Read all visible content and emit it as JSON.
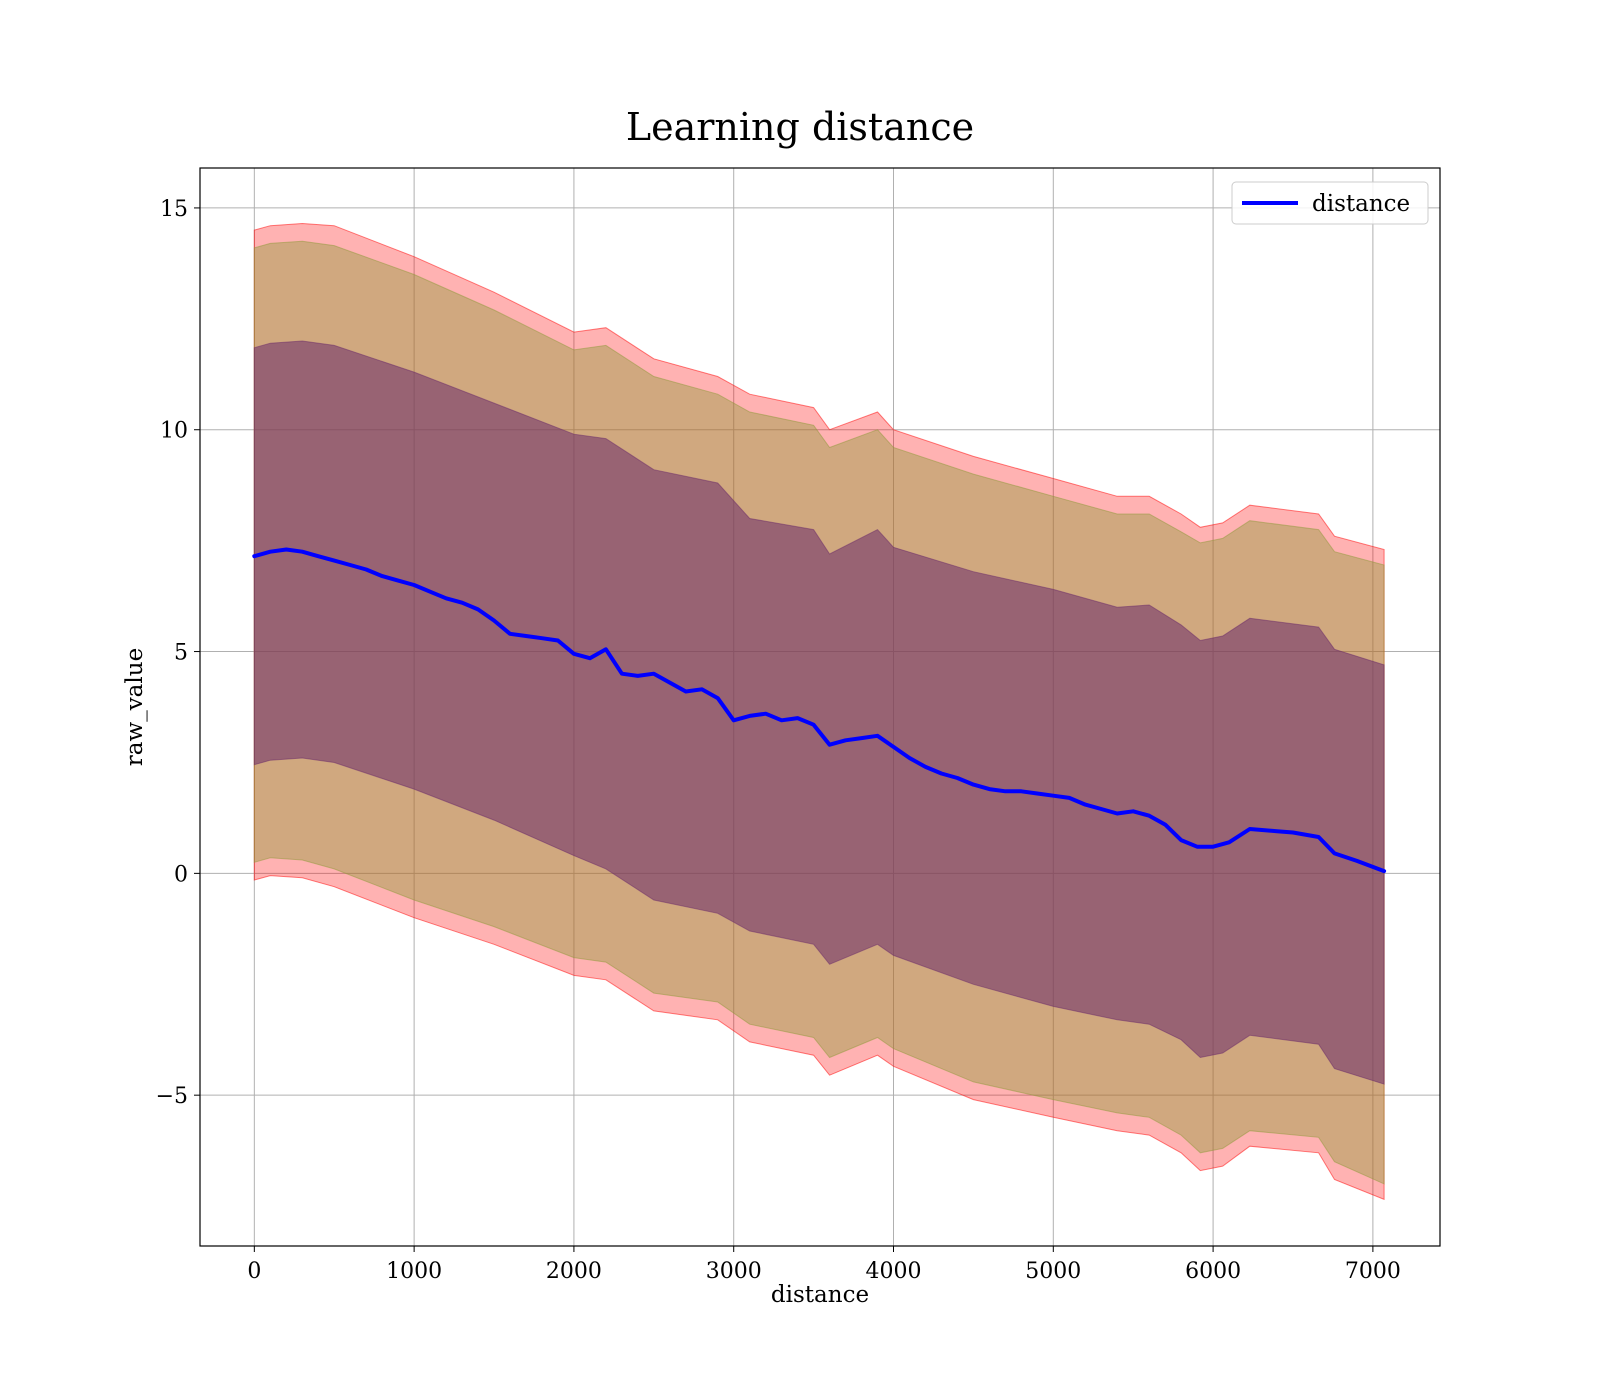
{
  "chart_data": {
    "type": "line",
    "title": "Learning distance",
    "xlabel": "distance",
    "ylabel": "raw_value",
    "xlim": [
      -340,
      7420
    ],
    "ylim": [
      -8.4,
      15.9
    ],
    "xticks": [
      0,
      1000,
      2000,
      3000,
      4000,
      5000,
      6000,
      7000
    ],
    "xtick_labels": [
      "0",
      "1000",
      "2000",
      "3000",
      "4000",
      "5000",
      "6000",
      "7000"
    ],
    "yticks": [
      -5,
      0,
      5,
      10,
      15
    ],
    "ytick_labels": [
      "−5",
      "0",
      "5",
      "10",
      "15"
    ],
    "grid": true,
    "legend_position": "upper right",
    "colors": {
      "line": "#0000ff",
      "band_outer": "#ff0000",
      "band_middle": "#8f9a3a",
      "band_inner": "#6a2a6a"
    },
    "series": [
      {
        "name": "distance",
        "x": [
          0,
          100,
          200,
          300,
          400,
          500,
          600,
          700,
          800,
          900,
          1000,
          1100,
          1200,
          1300,
          1400,
          1500,
          1600,
          1700,
          1800,
          1900,
          2000,
          2100,
          2200,
          2300,
          2400,
          2500,
          2600,
          2700,
          2800,
          2900,
          3000,
          3100,
          3200,
          3300,
          3400,
          3500,
          3600,
          3700,
          3800,
          3900,
          4000,
          4100,
          4200,
          4300,
          4400,
          4500,
          4600,
          4700,
          4800,
          4900,
          5000,
          5100,
          5200,
          5300,
          5400,
          5500,
          5600,
          5700,
          5800,
          5900,
          6000,
          6100,
          6230,
          6400,
          6500,
          6660,
          6760,
          6900,
          7070
        ],
        "y": [
          7.15,
          7.25,
          7.3,
          7.25,
          7.15,
          7.05,
          6.95,
          6.85,
          6.7,
          6.6,
          6.5,
          6.35,
          6.2,
          6.1,
          5.95,
          5.7,
          5.4,
          5.35,
          5.3,
          5.25,
          4.95,
          4.85,
          5.05,
          4.5,
          4.45,
          4.5,
          4.3,
          4.1,
          4.15,
          3.95,
          3.45,
          3.55,
          3.6,
          3.45,
          3.5,
          3.35,
          2.9,
          3.0,
          3.05,
          3.1,
          2.85,
          2.6,
          2.4,
          2.25,
          2.15,
          2.0,
          1.9,
          1.85,
          1.85,
          1.8,
          1.75,
          1.7,
          1.55,
          1.45,
          1.35,
          1.4,
          1.3,
          1.1,
          0.75,
          0.6,
          0.6,
          0.7,
          1.0,
          0.95,
          0.92,
          0.82,
          0.45,
          0.28,
          0.05
        ]
      }
    ],
    "bands": [
      {
        "x": [
          0,
          100,
          300,
          500,
          1000,
          1500,
          2000,
          2200,
          2500,
          2900,
          3100,
          3500,
          3600,
          3900,
          4000,
          4500,
          5000,
          5400,
          5600,
          5800,
          5920,
          6060,
          6230,
          6660,
          6760,
          7070
        ],
        "upper": [
          14.5,
          14.6,
          14.65,
          14.6,
          13.9,
          13.1,
          12.2,
          12.3,
          11.6,
          11.2,
          10.8,
          10.5,
          10.0,
          10.4,
          10.0,
          9.4,
          8.9,
          8.5,
          8.5,
          8.1,
          7.8,
          7.9,
          8.3,
          8.1,
          7.6,
          7.3
        ],
        "lower": [
          -0.15,
          -0.05,
          -0.1,
          -0.3,
          -1.0,
          -1.6,
          -2.3,
          -2.4,
          -3.1,
          -3.3,
          -3.8,
          -4.1,
          -4.55,
          -4.1,
          -4.35,
          -5.1,
          -5.5,
          -5.8,
          -5.9,
          -6.3,
          -6.7,
          -6.6,
          -6.15,
          -6.3,
          -6.9,
          -7.35
        ]
      },
      {
        "x": [
          0,
          100,
          300,
          500,
          1000,
          1500,
          2000,
          2200,
          2500,
          2900,
          3100,
          3500,
          3600,
          3900,
          4000,
          4500,
          5000,
          5400,
          5600,
          5800,
          5920,
          6060,
          6230,
          6660,
          6760,
          7070
        ],
        "upper": [
          14.1,
          14.2,
          14.25,
          14.15,
          13.5,
          12.7,
          11.8,
          11.9,
          11.2,
          10.8,
          10.4,
          10.1,
          9.6,
          10.0,
          9.6,
          9.0,
          8.5,
          8.1,
          8.1,
          7.7,
          7.45,
          7.55,
          7.95,
          7.75,
          7.25,
          6.95
        ],
        "lower": [
          0.25,
          0.35,
          0.3,
          0.1,
          -0.6,
          -1.2,
          -1.9,
          -2.0,
          -2.7,
          -2.9,
          -3.4,
          -3.7,
          -4.15,
          -3.7,
          -3.95,
          -4.7,
          -5.1,
          -5.4,
          -5.5,
          -5.9,
          -6.3,
          -6.2,
          -5.8,
          -5.95,
          -6.5,
          -7.0
        ]
      },
      {
        "x": [
          0,
          100,
          300,
          500,
          1000,
          1500,
          2000,
          2200,
          2500,
          2900,
          3100,
          3500,
          3600,
          3900,
          4000,
          4500,
          5000,
          5400,
          5600,
          5800,
          5920,
          6060,
          6230,
          6660,
          6760,
          7070
        ],
        "upper": [
          11.85,
          11.95,
          12.0,
          11.9,
          11.3,
          10.6,
          9.9,
          9.8,
          9.1,
          8.8,
          8.0,
          7.75,
          7.2,
          7.75,
          7.35,
          6.8,
          6.4,
          6.0,
          6.05,
          5.6,
          5.25,
          5.35,
          5.75,
          5.55,
          5.05,
          4.7
        ],
        "lower": [
          2.45,
          2.55,
          2.6,
          2.5,
          1.9,
          1.2,
          0.4,
          0.1,
          -0.6,
          -0.9,
          -1.3,
          -1.6,
          -2.05,
          -1.6,
          -1.85,
          -2.5,
          -3.0,
          -3.3,
          -3.4,
          -3.75,
          -4.15,
          -4.05,
          -3.65,
          -3.85,
          -4.4,
          -4.75
        ]
      }
    ]
  }
}
